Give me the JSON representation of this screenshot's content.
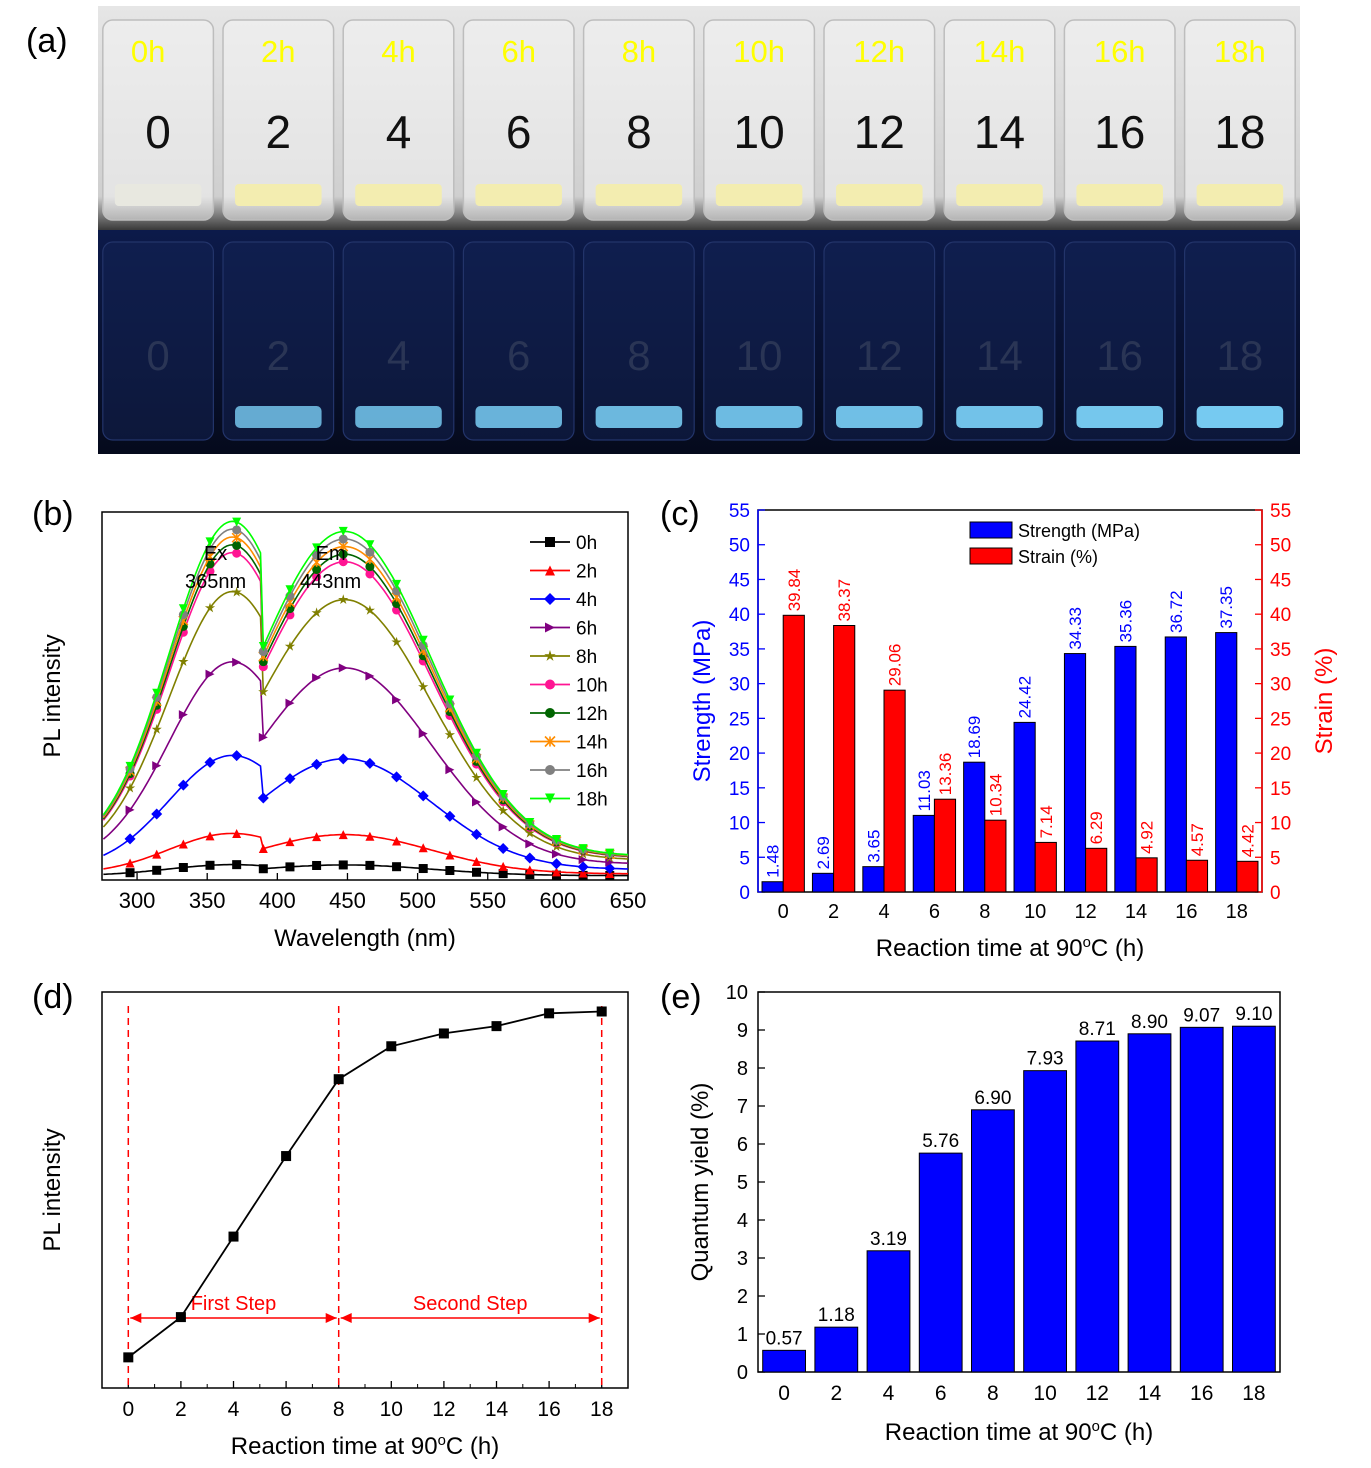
{
  "panel_labels": {
    "a": "(a)",
    "b": "(b)",
    "c": "(c)",
    "d": "(d)",
    "e": "(e)"
  },
  "photo": {
    "top_labels": [
      "0h",
      "2h",
      "4h",
      "6h",
      "8h",
      "10h",
      "12h",
      "14h",
      "16h",
      "18h"
    ],
    "vial_numbers": [
      "0",
      "2",
      "4",
      "6",
      "8",
      "10",
      "12",
      "14",
      "16",
      "18"
    ],
    "colors": {
      "label": "#ffff00",
      "daylight_bg": "#d8d8d8",
      "uv_bg": "#0a1230",
      "uv_glow": "#7fd8ff",
      "sample": "#f3edb0"
    }
  },
  "chart_data": [
    {
      "id": "b",
      "type": "line",
      "xlabel": "Wavelength (nm)",
      "ylabel": "PL intensity",
      "xlim": [
        275,
        650
      ],
      "ylim": [
        0,
        1
      ],
      "xticks": [
        300,
        350,
        400,
        450,
        500,
        550,
        600,
        650
      ],
      "annotations": [
        {
          "lines": [
            "Ex",
            "365nm"
          ]
        },
        {
          "lines": [
            "Em",
            "443nm"
          ]
        }
      ],
      "series": [
        {
          "name": "0h",
          "color": "#000000",
          "marker": "square",
          "peak": 0.03
        },
        {
          "name": "2h",
          "color": "#ff0000",
          "marker": "triangle",
          "peak": 0.11
        },
        {
          "name": "4h",
          "color": "#0000ff",
          "marker": "diamond",
          "peak": 0.31
        },
        {
          "name": "6h",
          "color": "#800080",
          "marker": "triangle-right",
          "peak": 0.55
        },
        {
          "name": "8h",
          "color": "#808000",
          "marker": "star",
          "peak": 0.73
        },
        {
          "name": "10h",
          "color": "#ff1493",
          "marker": "circle",
          "peak": 0.83
        },
        {
          "name": "12h",
          "color": "#006400",
          "marker": "circle",
          "peak": 0.85
        },
        {
          "name": "14h",
          "color": "#ff8c00",
          "marker": "x",
          "peak": 0.87
        },
        {
          "name": "16h",
          "color": "#808080",
          "marker": "circle",
          "peak": 0.89
        },
        {
          "name": "18h",
          "color": "#00ff00",
          "marker": "triangle-down",
          "peak": 0.91
        }
      ]
    },
    {
      "id": "c",
      "type": "bar",
      "xlabel": "Reaction time at 90oC (h)",
      "ylabel_left": "Strength (MPa)",
      "ylabel_right": "Strain (%)",
      "categories": [
        "0",
        "2",
        "4",
        "6",
        "8",
        "10",
        "12",
        "14",
        "16",
        "18"
      ],
      "ylim": [
        0,
        55
      ],
      "yticks": [
        0,
        5,
        10,
        15,
        20,
        25,
        30,
        35,
        40,
        45,
        50,
        55
      ],
      "legend": "top",
      "series": [
        {
          "name": "Strength (MPa)",
          "color": "#0000ff",
          "values": [
            1.48,
            2.69,
            3.65,
            11.03,
            18.69,
            24.42,
            34.33,
            35.36,
            36.72,
            37.35
          ],
          "labels": [
            "1.48",
            "2.69",
            "3.65",
            "11.03",
            "18.69",
            "24.42",
            "34.33",
            "35.36",
            "36.72",
            "37.35"
          ]
        },
        {
          "name": "Strain (%)",
          "color": "#ff0000",
          "values": [
            39.84,
            38.37,
            29.06,
            13.36,
            10.34,
            7.14,
            6.29,
            4.92,
            4.57,
            4.42
          ],
          "labels": [
            "39.84",
            "38.37",
            "29.06",
            "13.36",
            "10.34",
            "7.14",
            "6.29",
            "4.92",
            "4.57",
            "4.42"
          ]
        }
      ]
    },
    {
      "id": "d",
      "type": "line",
      "xlabel": "Reaction time at 90oC (h)",
      "ylabel": "PL intensity",
      "xlim": [
        -1,
        19
      ],
      "ylim": [
        0,
        1
      ],
      "xticks": [
        0,
        2,
        4,
        6,
        8,
        10,
        12,
        14,
        16,
        18
      ],
      "x": [
        0,
        2,
        4,
        6,
        8,
        10,
        12,
        14,
        16,
        18
      ],
      "y": [
        0.04,
        0.15,
        0.37,
        0.59,
        0.8,
        0.89,
        0.925,
        0.945,
        0.98,
        0.985
      ],
      "vlines": [
        0,
        8,
        18
      ],
      "annotations": [
        {
          "text": "First Step",
          "from": 0,
          "to": 8
        },
        {
          "text": "Second Step",
          "from": 8,
          "to": 18
        }
      ]
    },
    {
      "id": "e",
      "type": "bar",
      "xlabel": "Reaction time at 90oC (h)",
      "ylabel": "Quantum yield (%)",
      "categories": [
        "0",
        "2",
        "4",
        "6",
        "8",
        "10",
        "12",
        "14",
        "16",
        "18"
      ],
      "values": [
        0.57,
        1.18,
        3.19,
        5.76,
        6.9,
        7.93,
        8.71,
        8.9,
        9.07,
        9.1
      ],
      "labels": [
        "0.57",
        "1.18",
        "3.19",
        "5.76",
        "6.90",
        "7.93",
        "8.71",
        "8.90",
        "9.07",
        "9.10"
      ],
      "ylim": [
        0,
        10
      ],
      "yticks": [
        0,
        1,
        2,
        3,
        4,
        5,
        6,
        7,
        8,
        9,
        10
      ],
      "color": "#0000ff"
    }
  ]
}
